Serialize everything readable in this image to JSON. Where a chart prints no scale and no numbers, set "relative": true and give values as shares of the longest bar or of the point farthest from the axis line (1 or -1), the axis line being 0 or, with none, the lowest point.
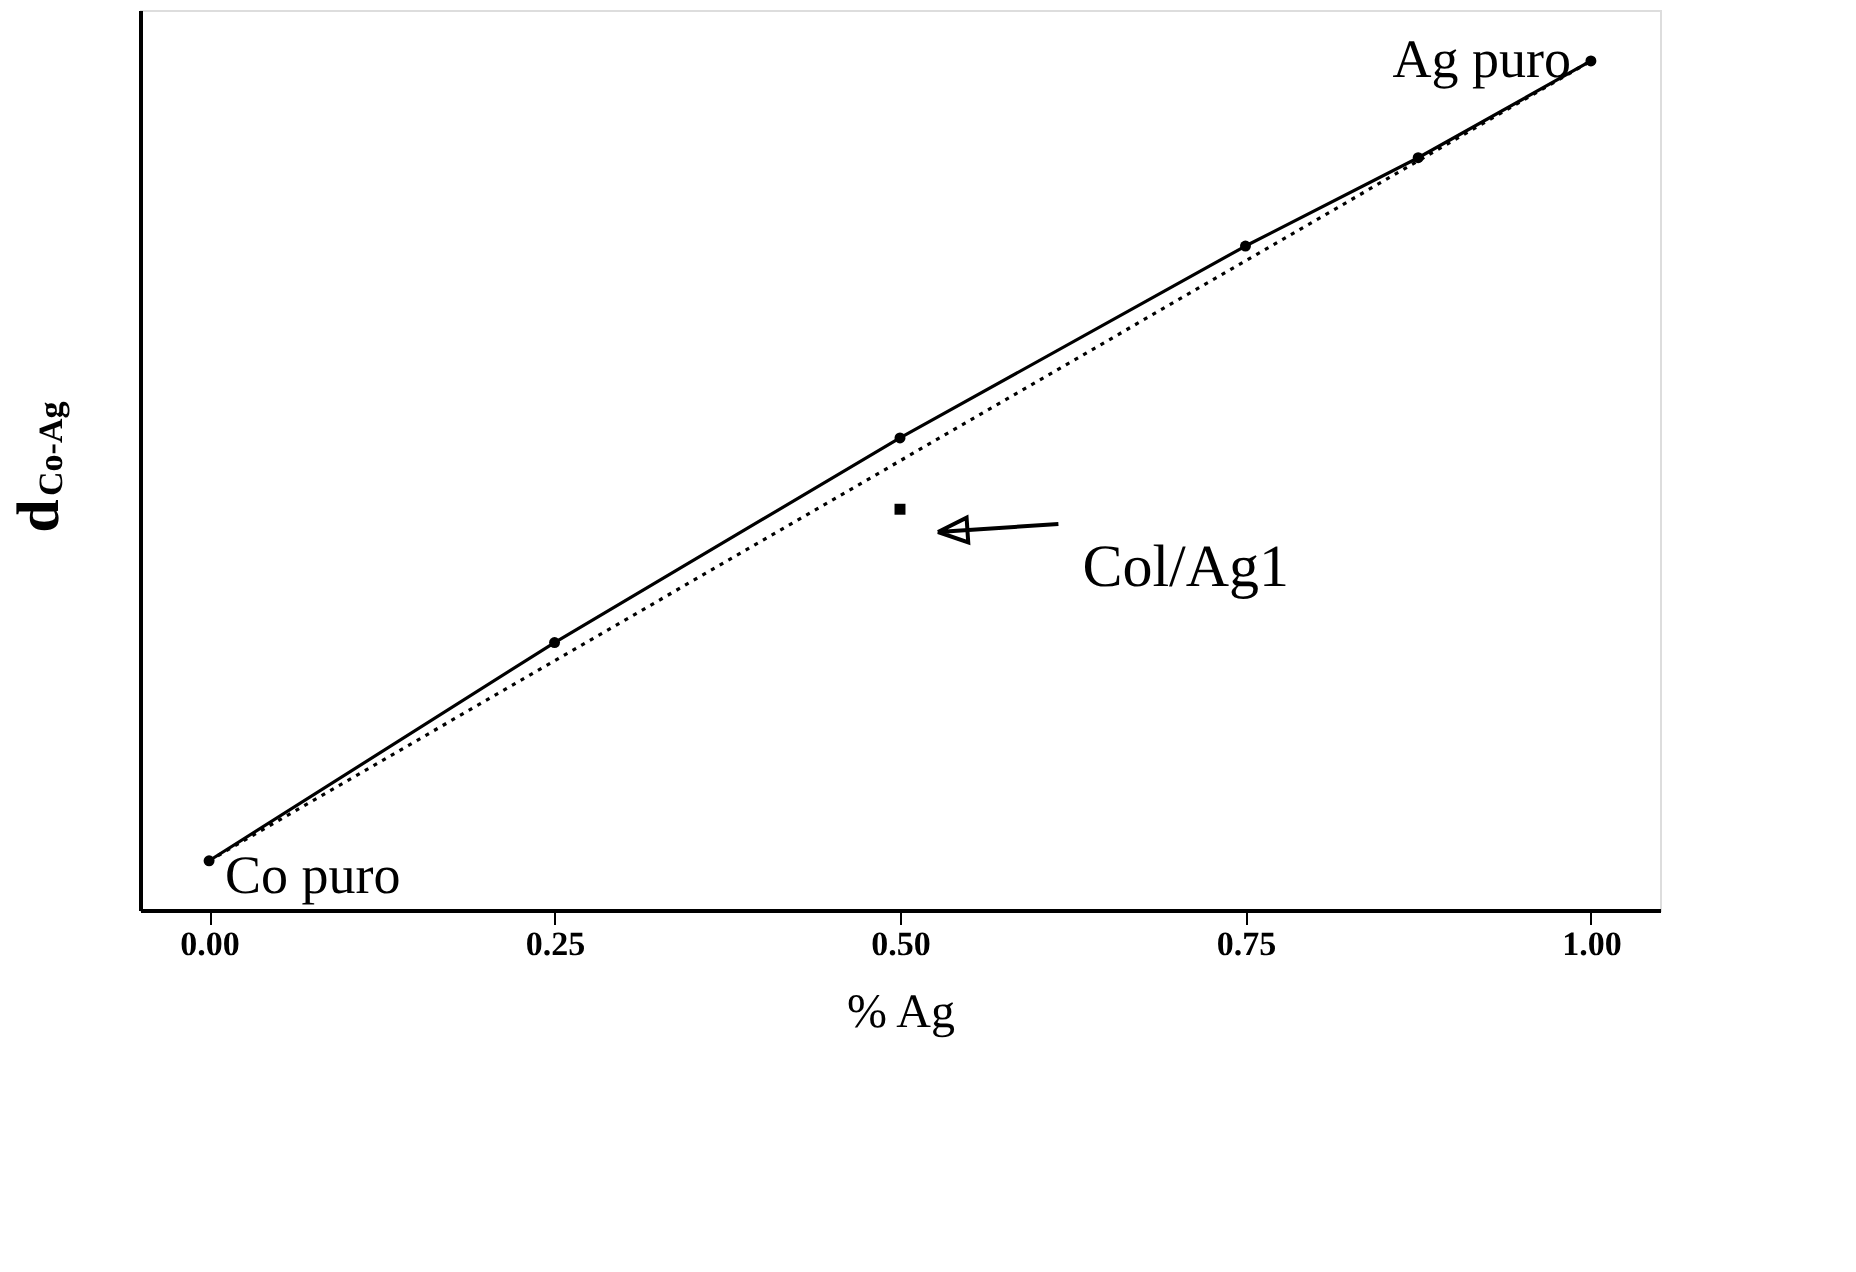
{
  "chart_data": {
    "type": "line",
    "relative": true,
    "xlabel": "% Ag",
    "ylabel": "d$_{Co-Ag}$",
    "xlim": [
      -0.05,
      1.05
    ],
    "xticks": [
      {
        "value": 0,
        "label": "0.00"
      },
      {
        "value": 0.25,
        "label": "0.25"
      },
      {
        "value": 0.5,
        "label": "0.50"
      },
      {
        "value": 0.75,
        "label": "0.75"
      },
      {
        "value": 1,
        "label": "1.00"
      }
    ],
    "tick_labels": "x",
    "grid": false,
    "series": [
      {
        "color": "#000000",
        "marker": "circle",
        "line_style": "solid",
        "x": [
          0,
          0.25,
          0.5,
          0.75,
          0.875,
          1
        ],
        "values": [
          0.058,
          0.315,
          0.556,
          0.782,
          0.886,
          1.0
        ]
      },
      {
        "color": "#000000",
        "marker": "none",
        "line_style": "dotted",
        "x": [
          0,
          1
        ],
        "values": [
          0.058,
          1.0
        ]
      },
      {
        "type": "scatter",
        "color": "#000000",
        "marker": "square",
        "x": [
          0.5
        ],
        "values": [
          0.472
        ]
      }
    ],
    "annotations": [
      {
        "text": "Co puro",
        "x": 0,
        "y": 0.058
      },
      {
        "text": "Ag puro",
        "x": 1,
        "y": 1.0
      },
      "Col/Ag1"
    ]
  }
}
